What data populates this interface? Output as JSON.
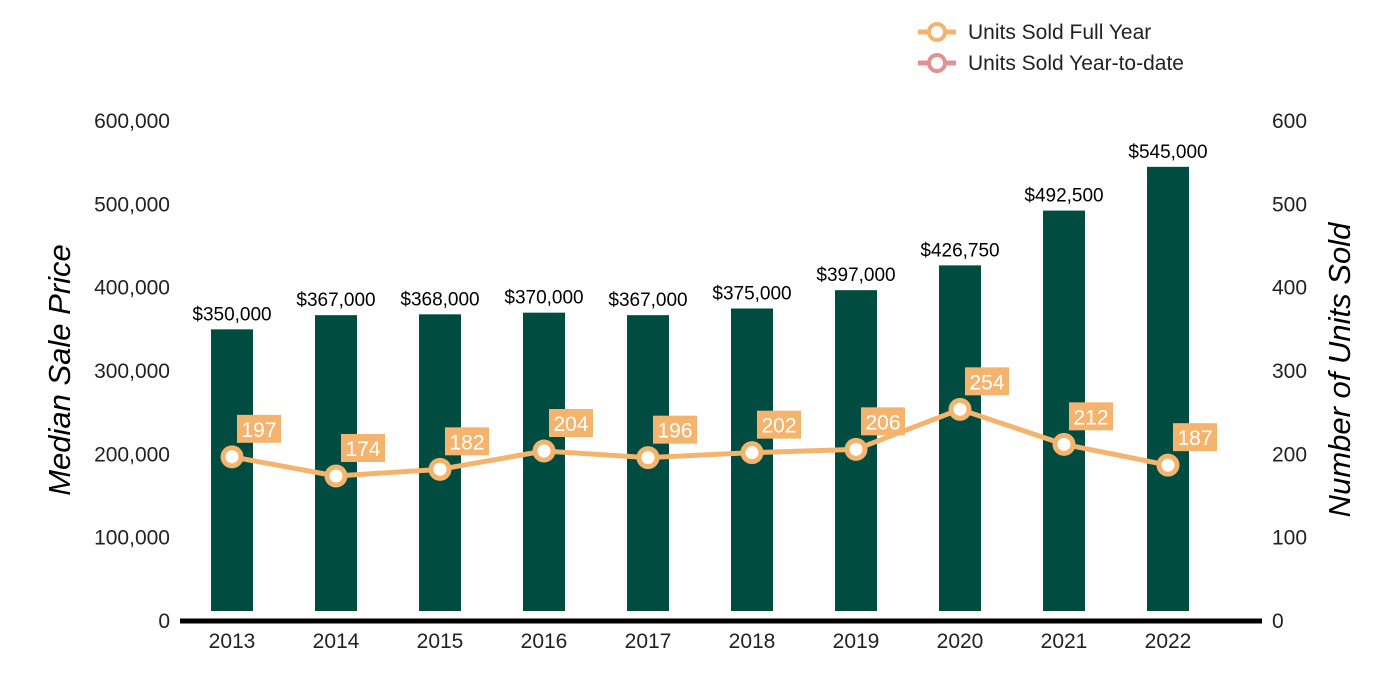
{
  "colors": {
    "bar": "#004c41",
    "line_full_year": "#f4b46e",
    "line_ytd": "#e09393",
    "marker_fill": "#ffffff",
    "label_bg": "#f4b46e",
    "label_text": "#ffffff",
    "text": "#000000",
    "tick_text": "#222222",
    "axis": "#000000"
  },
  "chart_data": {
    "type": "bar",
    "categories": [
      "2013",
      "2014",
      "2015",
      "2016",
      "2017",
      "2018",
      "2019",
      "2020",
      "2021",
      "2022"
    ],
    "series": [
      {
        "name": "Median Sale Price",
        "type": "bar",
        "axis": "left",
        "values": [
          350000,
          367000,
          368000,
          370000,
          367000,
          375000,
          397000,
          426750,
          492500,
          545000
        ],
        "labels": [
          "$350,000",
          "$367,000",
          "$368,000",
          "$370,000",
          "$367,000",
          "$375,000",
          "$397,000",
          "$426,750",
          "$492,500",
          "$545,000"
        ]
      },
      {
        "name": "Units Sold Full Year",
        "type": "line",
        "axis": "right",
        "values": [
          197,
          174,
          182,
          204,
          196,
          202,
          206,
          254,
          212,
          187
        ]
      }
    ],
    "legend": [
      "Units Sold Full Year",
      "Units Sold Year-to-date"
    ],
    "y_left": {
      "label": "Median Sale Price",
      "range": [
        0,
        600000
      ],
      "ticks": [
        0,
        100000,
        200000,
        300000,
        400000,
        500000,
        600000
      ],
      "tick_labels": [
        "0",
        "100,000",
        "200,000",
        "300,000",
        "400,000",
        "500,000",
        "600,000"
      ]
    },
    "y_right": {
      "label": "Number of Units Sold",
      "range": [
        0,
        600
      ],
      "ticks": [
        0,
        100,
        200,
        300,
        400,
        500,
        600
      ],
      "tick_labels": [
        "0",
        "100",
        "200",
        "300",
        "400",
        "500",
        "600"
      ]
    },
    "grid": false,
    "legend_position": "top-right"
  }
}
